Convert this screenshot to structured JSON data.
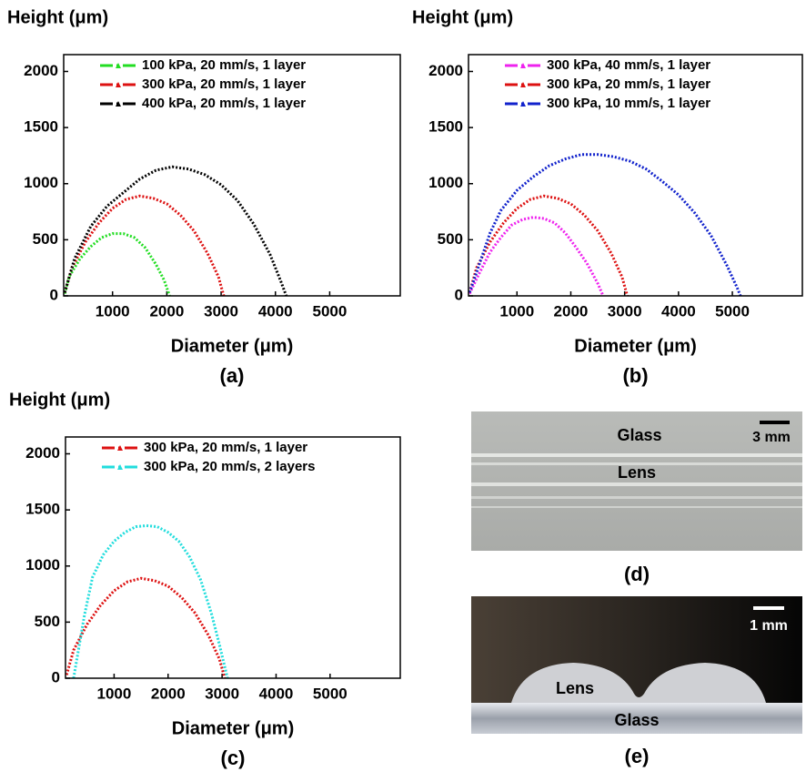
{
  "chart_data": [
    {
      "type": "line",
      "panel": "(a)",
      "y_label": "Height (μm)",
      "x_label": "Diameter (μm)",
      "xlim": [
        100,
        6300
      ],
      "ylim": [
        0,
        2150
      ],
      "xticks": [
        1000,
        2000,
        3000,
        4000,
        5000
      ],
      "yticks": [
        0,
        500,
        1000,
        1500,
        2000
      ],
      "series": [
        {
          "name": "100 kPa, 20 mm/s, 1 layer",
          "color": "#22dd22",
          "x": [
            120,
            200,
            400,
            600,
            800,
            1000,
            1200,
            1400,
            1600,
            1800,
            1950,
            2050
          ],
          "values": [
            20,
            170,
            330,
            440,
            520,
            555,
            555,
            520,
            430,
            280,
            140,
            0
          ]
        },
        {
          "name": "300 kPa, 20 mm/s, 1 layer",
          "color": "#dd1111",
          "x": [
            120,
            250,
            500,
            750,
            1000,
            1250,
            1500,
            1750,
            2000,
            2250,
            2500,
            2750,
            2950,
            3050
          ],
          "values": [
            30,
            250,
            480,
            650,
            780,
            860,
            890,
            870,
            820,
            720,
            580,
            380,
            170,
            0
          ]
        },
        {
          "name": "400 kPa, 20 mm/s, 1 layer",
          "color": "#000000",
          "x": [
            120,
            300,
            600,
            900,
            1200,
            1500,
            1800,
            2100,
            2400,
            2700,
            3000,
            3300,
            3600,
            3900,
            4100,
            4200
          ],
          "values": [
            30,
            330,
            620,
            800,
            920,
            1040,
            1120,
            1150,
            1130,
            1080,
            990,
            850,
            640,
            370,
            130,
            0
          ]
        }
      ]
    },
    {
      "type": "line",
      "panel": "(b)",
      "y_label": "Height (μm)",
      "x_label": "Diameter (μm)",
      "xlim": [
        100,
        6300
      ],
      "ylim": [
        0,
        2150
      ],
      "xticks": [
        1000,
        2000,
        3000,
        4000,
        5000
      ],
      "yticks": [
        0,
        500,
        1000,
        1500,
        2000
      ],
      "series": [
        {
          "name": "300 kPa, 40 mm/s, 1 layer",
          "color": "#ee22ee",
          "x": [
            120,
            300,
            500,
            700,
            900,
            1100,
            1300,
            1500,
            1700,
            1900,
            2100,
            2300,
            2500,
            2600
          ],
          "values": [
            20,
            200,
            390,
            520,
            630,
            680,
            700,
            690,
            650,
            560,
            430,
            290,
            110,
            0
          ]
        },
        {
          "name": "300 kPa, 20 mm/s, 1 layer",
          "color": "#dd1111",
          "x": [
            120,
            250,
            500,
            750,
            1000,
            1250,
            1500,
            1750,
            2000,
            2250,
            2500,
            2750,
            2950,
            3050
          ],
          "values": [
            30,
            250,
            480,
            650,
            780,
            860,
            890,
            870,
            820,
            720,
            580,
            380,
            170,
            0
          ]
        },
        {
          "name": "300 kPa, 10 mm/s, 1 layer",
          "color": "#1122cc",
          "x": [
            120,
            300,
            500,
            700,
            1000,
            1300,
            1600,
            1900,
            2200,
            2500,
            2800,
            3100,
            3400,
            3700,
            4000,
            4300,
            4600,
            4900,
            5100,
            5150
          ],
          "values": [
            30,
            280,
            560,
            760,
            940,
            1060,
            1160,
            1220,
            1260,
            1260,
            1240,
            1200,
            1130,
            1020,
            900,
            740,
            540,
            270,
            60,
            0
          ]
        }
      ]
    },
    {
      "type": "line",
      "panel": "(c)",
      "y_label": "Height (μm)",
      "x_label": "Diameter (μm)",
      "xlim": [
        100,
        6300
      ],
      "ylim": [
        0,
        2150
      ],
      "xticks": [
        1000,
        2000,
        3000,
        4000,
        5000
      ],
      "yticks": [
        0,
        500,
        1000,
        1500,
        2000
      ],
      "series": [
        {
          "name": "300 kPa, 20 mm/s, 1 layer",
          "color": "#dd1111",
          "x": [
            120,
            250,
            500,
            750,
            1000,
            1250,
            1500,
            1750,
            2000,
            2250,
            2500,
            2750,
            2950,
            3050
          ],
          "values": [
            30,
            250,
            480,
            650,
            780,
            860,
            890,
            870,
            820,
            720,
            580,
            380,
            170,
            0
          ]
        },
        {
          "name": "300 kPa, 20 mm/s, 2 layers",
          "color": "#22dddd",
          "x": [
            250,
            450,
            600,
            800,
            1000,
            1200,
            1400,
            1600,
            1800,
            2000,
            2200,
            2400,
            2600,
            2800,
            2950,
            3100
          ],
          "values": [
            0,
            560,
            900,
            1100,
            1220,
            1300,
            1350,
            1360,
            1350,
            1300,
            1220,
            1080,
            880,
            580,
            300,
            0
          ]
        }
      ]
    }
  ],
  "photos": [
    {
      "panel": "(d)",
      "top_label": "Glass",
      "middle_label": "Lens",
      "scale_bar": "3 mm"
    },
    {
      "panel": "(e)",
      "top_label": "Lens",
      "bottom_label": "Glass",
      "scale_bar": "1 mm"
    }
  ]
}
